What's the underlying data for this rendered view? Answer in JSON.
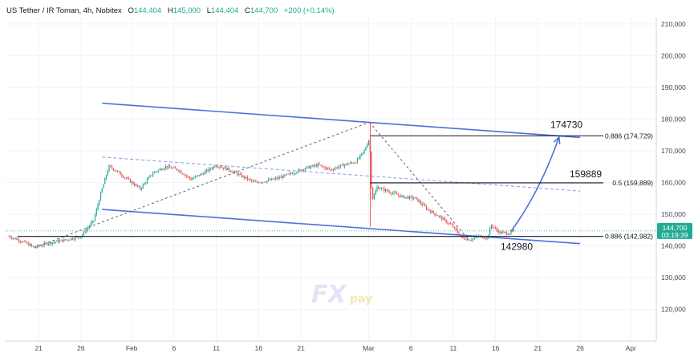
{
  "header": {
    "symbol": "US Tether / IR Toman, 4h, Nobitex",
    "o_label": "O",
    "o_value": "144,404",
    "h_label": "H",
    "h_value": "145,000",
    "l_label": "L",
    "l_value": "144,404",
    "c_label": "C",
    "c_value": "144,700",
    "change": "+200 (+0.14%)"
  },
  "chart_data": {
    "type": "candlestick",
    "title": "",
    "ylim": [
      110000,
      212000
    ],
    "y_ticks": [
      120000,
      130000,
      140000,
      150000,
      160000,
      170000,
      180000,
      190000,
      200000,
      210000
    ],
    "y_tick_labels": [
      "120,000",
      "130,000",
      "140,000",
      "150,000",
      "160,000",
      "170,000",
      "180,000",
      "190,000",
      "200,000",
      "210,000"
    ],
    "x_tick_labels": [
      "21",
      "26",
      "Feb",
      "6",
      "11",
      "16",
      "21",
      "Mar",
      "6",
      "11",
      "16",
      "21",
      "26",
      "Apr"
    ],
    "x_tick_days": [
      21,
      26,
      32,
      37,
      42,
      47,
      52,
      60,
      65,
      70,
      75,
      80,
      85,
      91
    ],
    "xlim_days": [
      17,
      94
    ],
    "price_path": [
      [
        17.5,
        143000
      ],
      [
        19,
        141500
      ],
      [
        20.5,
        139500
      ],
      [
        22,
        140800
      ],
      [
        24,
        141800
      ],
      [
        26,
        143000
      ],
      [
        27.5,
        148000
      ],
      [
        28.5,
        158000
      ],
      [
        29.3,
        165000
      ],
      [
        30,
        164000
      ],
      [
        31.5,
        161000
      ],
      [
        33,
        158000
      ],
      [
        34.5,
        163000
      ],
      [
        36,
        165000
      ],
      [
        37.5,
        164000
      ],
      [
        39,
        161000
      ],
      [
        40.5,
        163000
      ],
      [
        42,
        165500
      ],
      [
        43.5,
        164000
      ],
      [
        45,
        162000
      ],
      [
        46.5,
        160000
      ],
      [
        48,
        160500
      ],
      [
        49.5,
        161500
      ],
      [
        51,
        163000
      ],
      [
        52.5,
        164500
      ],
      [
        54,
        165500
      ],
      [
        55.5,
        164000
      ],
      [
        57,
        165500
      ],
      [
        58.5,
        166500
      ],
      [
        59.5,
        170000
      ],
      [
        60.1,
        174000
      ],
      [
        60.4,
        154000
      ],
      [
        61,
        158500
      ],
      [
        62.5,
        157000
      ],
      [
        64,
        155500
      ],
      [
        65.5,
        155000
      ],
      [
        67,
        151500
      ],
      [
        68.5,
        149000
      ],
      [
        70,
        146000
      ],
      [
        71,
        142500
      ],
      [
        72,
        142000
      ],
      [
        73,
        143000
      ],
      [
        74,
        142500
      ],
      [
        74.5,
        146500
      ],
      [
        75.5,
        144200
      ],
      [
        76.5,
        144000
      ],
      [
        77.2,
        144700
      ]
    ],
    "fib_levels": [
      {
        "ratio": "0.886",
        "value": 174729,
        "label": "0.886 (174,729)",
        "callout": "174730"
      },
      {
        "ratio": "0.5",
        "value": 159889,
        "label": "0.5 (159,889)",
        "callout": "159889"
      },
      {
        "ratio": "0.886",
        "value": 142982,
        "label": "0.886 (142,982)",
        "callout": "142980"
      }
    ],
    "channel_upper": [
      [
        28.5,
        185000
      ],
      [
        85,
        174200
      ]
    ],
    "channel_lower": [
      [
        28.5,
        151500
      ],
      [
        85,
        140700
      ]
    ],
    "dashed_mid": [
      [
        28.5,
        168000
      ],
      [
        85,
        157300
      ]
    ],
    "zigzag": [
      [
        20.5,
        139500
      ],
      [
        60.1,
        179000
      ],
      [
        71.8,
        142000
      ]
    ],
    "projection": [
      [
        76.8,
        144500
      ],
      [
        82.5,
        174300
      ]
    ],
    "last_price": {
      "value": 144700,
      "label": "144,700",
      "timer": "03:19:39",
      "color": "#22ab94"
    },
    "colors": {
      "up": "#26a69a",
      "down": "#ef5350",
      "channel": "#4a72d9",
      "grid": "#f0f3fa"
    }
  },
  "watermark": {
    "text_fx": "FX",
    "text_pay": "pay"
  }
}
